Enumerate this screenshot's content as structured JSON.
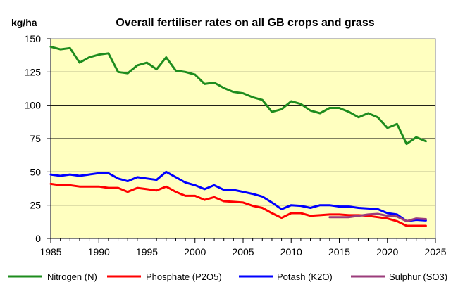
{
  "chart_data": {
    "type": "line",
    "title": "Overall fertiliser rates on all GB crops and grass",
    "ylabel": "kg/ha",
    "xlabel": "",
    "xlim": [
      1985,
      2025
    ],
    "ylim": [
      0,
      150
    ],
    "x_ticks": [
      1985,
      1990,
      1995,
      2000,
      2005,
      2010,
      2015,
      2020,
      2025
    ],
    "y_ticks": [
      0,
      25,
      50,
      75,
      100,
      125,
      150
    ],
    "grid": "horizontal",
    "background_color": "#FFFFC0",
    "legend_position": "bottom",
    "series": [
      {
        "name": "Nitrogen (N)",
        "color": "#1E8C1E",
        "points": [
          [
            1985,
            144
          ],
          [
            1986,
            142
          ],
          [
            1987,
            143
          ],
          [
            1988,
            132
          ],
          [
            1989,
            136
          ],
          [
            1990,
            138
          ],
          [
            1991,
            139
          ],
          [
            1992,
            125
          ],
          [
            1993,
            124
          ],
          [
            1994,
            130
          ],
          [
            1995,
            132
          ],
          [
            1996,
            127
          ],
          [
            1997,
            136
          ],
          [
            1998,
            126
          ],
          [
            1999,
            125
          ],
          [
            2000,
            123
          ],
          [
            2001,
            116
          ],
          [
            2002,
            117
          ],
          [
            2003,
            113
          ],
          [
            2004,
            110
          ],
          [
            2005,
            109
          ],
          [
            2006,
            106
          ],
          [
            2007,
            104
          ],
          [
            2008,
            95
          ],
          [
            2009,
            97
          ],
          [
            2010,
            103
          ],
          [
            2011,
            101
          ],
          [
            2012,
            96
          ],
          [
            2013,
            94
          ],
          [
            2014,
            98
          ],
          [
            2015,
            98
          ],
          [
            2016,
            95
          ],
          [
            2017,
            91
          ],
          [
            2018,
            94
          ],
          [
            2019,
            91
          ],
          [
            2020,
            83
          ],
          [
            2021,
            86
          ],
          [
            2022,
            71
          ],
          [
            2023,
            76
          ],
          [
            2024,
            73
          ]
        ]
      },
      {
        "name": "Phosphate (P2O5)",
        "color": "#FF0000",
        "points": [
          [
            1985,
            41
          ],
          [
            1986,
            40
          ],
          [
            1987,
            40
          ],
          [
            1988,
            39
          ],
          [
            1989,
            39
          ],
          [
            1990,
            39
          ],
          [
            1991,
            38
          ],
          [
            1992,
            38
          ],
          [
            1993,
            35
          ],
          [
            1994,
            38
          ],
          [
            1995,
            37
          ],
          [
            1996,
            36
          ],
          [
            1997,
            39
          ],
          [
            1998,
            35
          ],
          [
            1999,
            32
          ],
          [
            2000,
            32
          ],
          [
            2001,
            29
          ],
          [
            2002,
            31
          ],
          [
            2003,
            28
          ],
          [
            2004,
            27.5
          ],
          [
            2005,
            27
          ],
          [
            2006,
            24.5
          ],
          [
            2007,
            23
          ],
          [
            2008,
            19
          ],
          [
            2009,
            15.5
          ],
          [
            2010,
            19
          ],
          [
            2011,
            19
          ],
          [
            2012,
            17
          ],
          [
            2013,
            17.5
          ],
          [
            2014,
            18
          ],
          [
            2015,
            18
          ],
          [
            2016,
            17.5
          ],
          [
            2017,
            17.5
          ],
          [
            2018,
            17
          ],
          [
            2019,
            16
          ],
          [
            2020,
            15
          ],
          [
            2021,
            13
          ],
          [
            2022,
            9.5
          ],
          [
            2023,
            9.5
          ],
          [
            2024,
            9.5
          ]
        ]
      },
      {
        "name": "Potash (K2O)",
        "color": "#0000FF",
        "points": [
          [
            1985,
            48
          ],
          [
            1986,
            47
          ],
          [
            1987,
            48
          ],
          [
            1988,
            47
          ],
          [
            1989,
            48
          ],
          [
            1990,
            49
          ],
          [
            1991,
            49
          ],
          [
            1992,
            45
          ],
          [
            1993,
            43
          ],
          [
            1994,
            46
          ],
          [
            1995,
            45
          ],
          [
            1996,
            44
          ],
          [
            1997,
            50
          ],
          [
            1998,
            46
          ],
          [
            1999,
            42
          ],
          [
            2000,
            40
          ],
          [
            2001,
            37
          ],
          [
            2002,
            40
          ],
          [
            2003,
            36.5
          ],
          [
            2004,
            36.5
          ],
          [
            2005,
            35
          ],
          [
            2006,
            33.5
          ],
          [
            2007,
            31.5
          ],
          [
            2008,
            27
          ],
          [
            2009,
            22
          ],
          [
            2010,
            25
          ],
          [
            2011,
            24.5
          ],
          [
            2012,
            23
          ],
          [
            2013,
            25
          ],
          [
            2014,
            25
          ],
          [
            2015,
            24
          ],
          [
            2016,
            24
          ],
          [
            2017,
            23
          ],
          [
            2018,
            22.5
          ],
          [
            2019,
            22
          ],
          [
            2020,
            19
          ],
          [
            2021,
            18
          ],
          [
            2022,
            13
          ],
          [
            2023,
            14
          ],
          [
            2024,
            13.5
          ]
        ]
      },
      {
        "name": "Sulphur (SO3)",
        "color": "#9B3C7B",
        "points": [
          [
            2014,
            16
          ],
          [
            2015,
            16
          ],
          [
            2016,
            16
          ],
          [
            2017,
            17
          ],
          [
            2018,
            18
          ],
          [
            2019,
            18.5
          ],
          [
            2020,
            17
          ],
          [
            2021,
            16.5
          ],
          [
            2022,
            13
          ],
          [
            2023,
            15
          ],
          [
            2024,
            14.5
          ]
        ]
      }
    ]
  }
}
